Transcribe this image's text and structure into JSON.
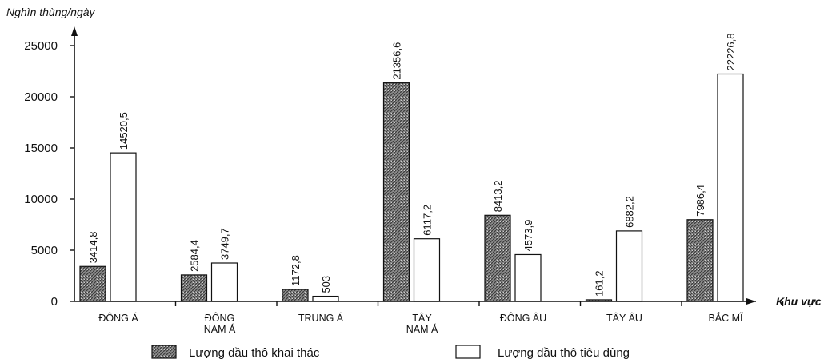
{
  "chart_data": {
    "type": "bar",
    "title": "",
    "ylabel": "Nghìn thùng/ngày",
    "xlabel": "Khu vực",
    "ylim": [
      0,
      25000
    ],
    "yticks": [
      0,
      5000,
      10000,
      15000,
      20000,
      25000
    ],
    "grid": false,
    "legend_position": "bottom",
    "categories": [
      [
        "ĐÔNG Á"
      ],
      [
        "ĐÔNG",
        "NAM Á"
      ],
      [
        "TRUNG Á"
      ],
      [
        "TÂY",
        "NAM Á"
      ],
      [
        "ĐÔNG ÂU"
      ],
      [
        "TÂY ÂU"
      ],
      [
        "BẮC MĨ"
      ]
    ],
    "series": [
      {
        "name": "Lượng dầu thô khai thác",
        "values": [
          3414.8,
          2584.4,
          1172.8,
          21356.6,
          8413.2,
          161.2,
          7986.4
        ],
        "labels": [
          "3414,8",
          "2584,4",
          "1172,8",
          "21356,6",
          "8413,2",
          "161,2",
          "7986,4"
        ],
        "fill": "hatched-gray",
        "color": "#6e6e6e"
      },
      {
        "name": "Lượng dầu thô tiêu dùng",
        "values": [
          14520.5,
          3749.7,
          503,
          6117.2,
          4573.9,
          6882.2,
          22226.8
        ],
        "labels": [
          "14520,5",
          "3749,7",
          "503",
          "6117,2",
          "4573,9",
          "6882,2",
          "22226,8"
        ],
        "fill": "white",
        "color": "#ffffff"
      }
    ]
  }
}
